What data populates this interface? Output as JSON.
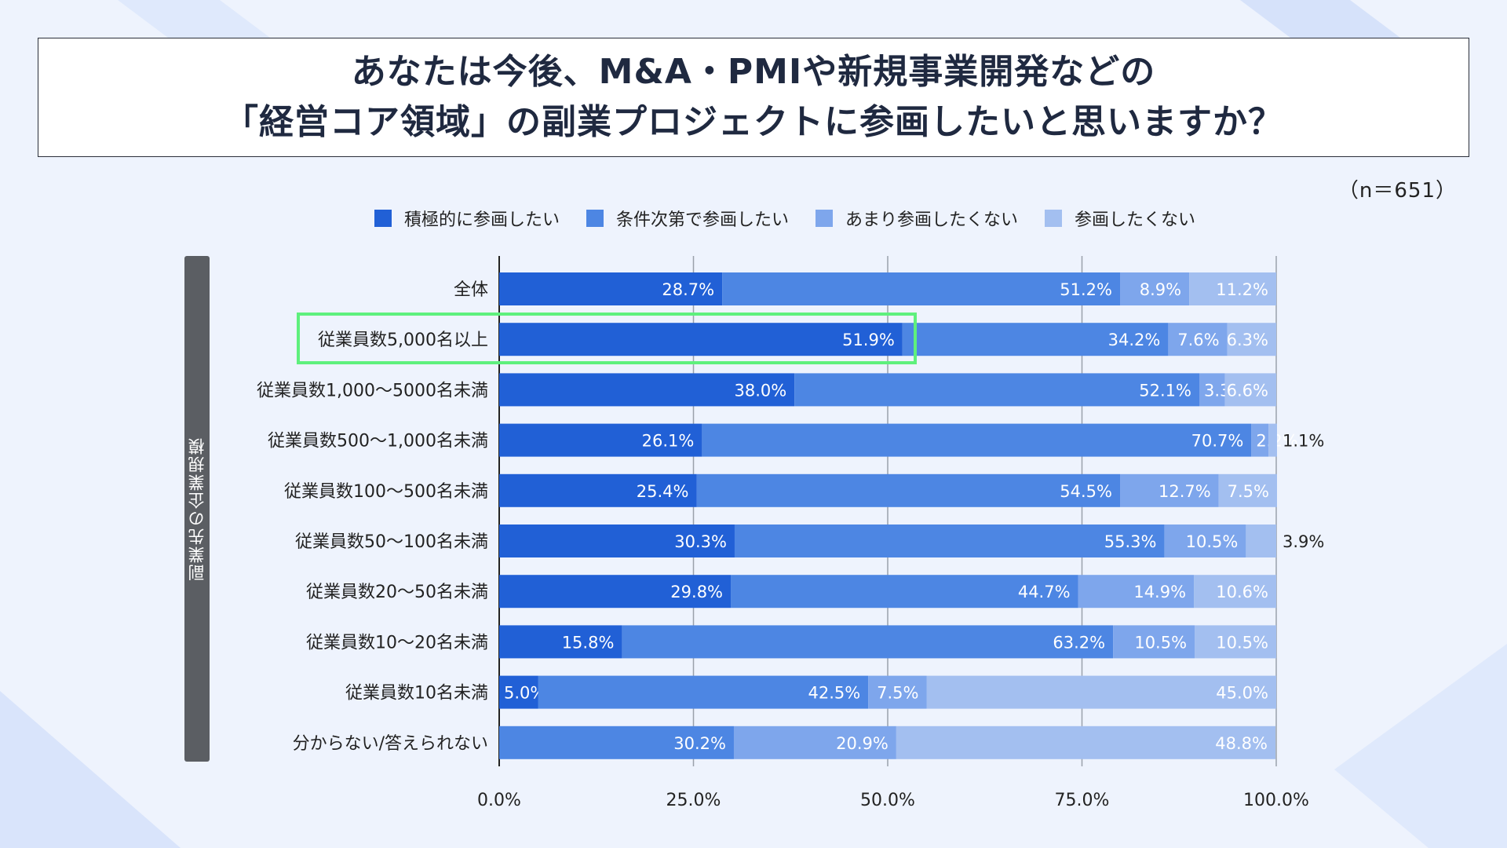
{
  "page": {
    "title_lines": [
      "あなたは今後、M&A・PMIや新規事業開発などの",
      "「経営コア領域」の副業プロジェクトに参画したいと思いますか？"
    ],
    "sample_note": "（n＝651）",
    "side_label": "副業先の企業規模"
  },
  "colors": {
    "background": "#eef3fd",
    "series": [
      "#2160d6",
      "#4d86e3",
      "#7ea6ec",
      "#a3bff0"
    ],
    "highlight": "#5ef07d",
    "grid": "#9aa1ab"
  },
  "chart_data": {
    "type": "bar",
    "orientation": "horizontal",
    "stacked": true,
    "categories": [
      "全体",
      "従業員数5,000名以上",
      "従業員数1,000〜5000名未満",
      "従業員数500〜1,000名未満",
      "従業員数100〜500名未満",
      "従業員数50〜100名未満",
      "従業員数20〜50名未満",
      "従業員数10〜20名未満",
      "従業員数10名未満",
      "分からない/答えられない"
    ],
    "series": [
      {
        "name": "積極的に参画したい",
        "values": [
          28.7,
          51.9,
          38.0,
          26.1,
          25.4,
          30.3,
          29.8,
          15.8,
          5.0,
          0
        ]
      },
      {
        "name": "条件次第で参画したい",
        "values": [
          51.2,
          34.2,
          52.1,
          70.7,
          54.5,
          55.3,
          44.7,
          63.2,
          42.5,
          30.2
        ]
      },
      {
        "name": "あまり参画したくない",
        "values": [
          8.9,
          7.6,
          3.3,
          2.2,
          12.7,
          10.5,
          14.9,
          10.5,
          7.5,
          20.9
        ]
      },
      {
        "name": "参画したくない",
        "values": [
          11.2,
          6.3,
          6.6,
          1.1,
          7.5,
          3.9,
          10.6,
          10.5,
          45.0,
          48.8
        ]
      }
    ],
    "xlim": [
      0,
      100
    ],
    "xticks": [
      "0.0%",
      "25.0%",
      "50.0%",
      "75.0%",
      "100.0%"
    ],
    "value_suffix": "%",
    "highlight_category": "従業員数5,000名以上",
    "grid": true,
    "legend": "top"
  }
}
